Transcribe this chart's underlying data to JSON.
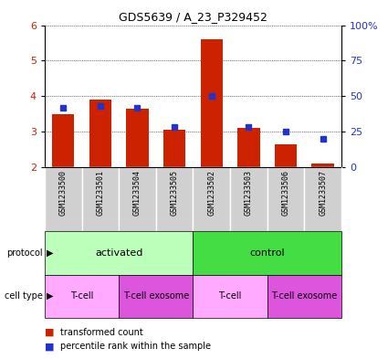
{
  "title": "GDS5639 / A_23_P329452",
  "samples": [
    "GSM1233500",
    "GSM1233501",
    "GSM1233504",
    "GSM1233505",
    "GSM1233502",
    "GSM1233503",
    "GSM1233506",
    "GSM1233507"
  ],
  "red_values": [
    3.5,
    3.9,
    3.65,
    3.05,
    5.6,
    3.1,
    2.65,
    2.1
  ],
  "blue_pct": [
    42,
    43,
    42,
    28,
    50,
    28,
    25,
    20
  ],
  "y_min": 2,
  "y_max": 6,
  "y_ticks_left": [
    2,
    3,
    4,
    5,
    6
  ],
  "right_pct_vals": [
    0,
    25,
    50,
    75,
    100
  ],
  "bar_bottom": 2,
  "bar_color": "#cc2200",
  "blue_color": "#2233cc",
  "protocol_groups": [
    {
      "label": "activated",
      "start": 0,
      "end": 4,
      "color": "#bbffbb"
    },
    {
      "label": "control",
      "start": 4,
      "end": 8,
      "color": "#44dd44"
    }
  ],
  "cell_type_groups": [
    {
      "label": "T-cell",
      "start": 0,
      "end": 2,
      "color": "#ffaaff"
    },
    {
      "label": "T-cell exosome",
      "start": 2,
      "end": 4,
      "color": "#dd55dd"
    },
    {
      "label": "T-cell",
      "start": 4,
      "end": 6,
      "color": "#ffaaff"
    },
    {
      "label": "T-cell exosome",
      "start": 6,
      "end": 8,
      "color": "#dd55dd"
    }
  ],
  "legend_red": "transformed count",
  "legend_blue": "percentile rank within the sample",
  "left_label_color": "#cc2200",
  "right_label_color": "#2233cc",
  "gsm_bg_color": "#d0d0d0",
  "gsm_border_color": "#aaaaaa"
}
